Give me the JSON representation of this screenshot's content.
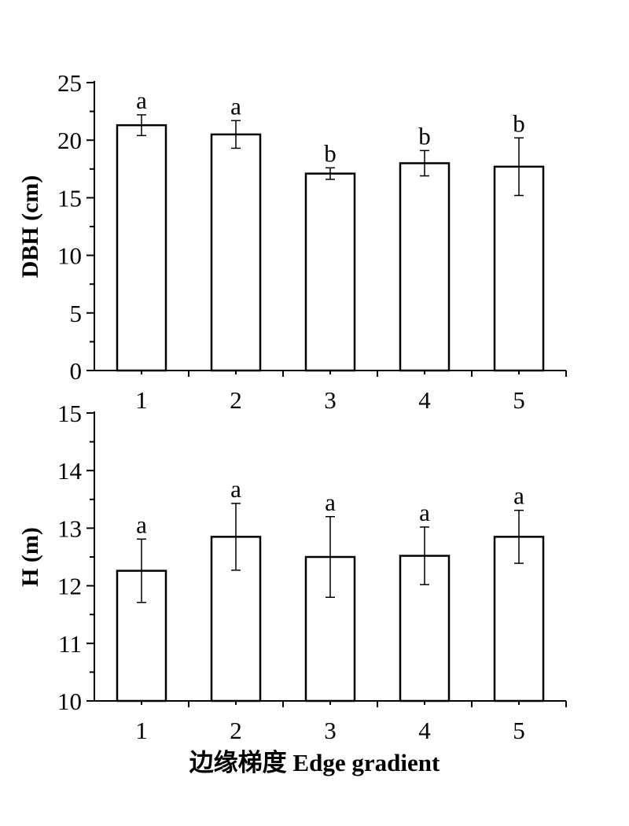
{
  "chart_data": [
    {
      "type": "bar",
      "categories": [
        "1",
        "2",
        "3",
        "4",
        "5"
      ],
      "values": [
        21.3,
        20.5,
        17.1,
        18.0,
        17.7
      ],
      "errors": [
        0.9,
        1.2,
        0.5,
        1.1,
        2.5
      ],
      "annotations": [
        "a",
        "a",
        "b",
        "b",
        "b"
      ],
      "ylabel": "DBH (cm)",
      "ylim": [
        0,
        25
      ],
      "yticks": [
        0,
        5,
        10,
        15,
        20,
        25
      ],
      "ytick_labels": [
        "0",
        "5",
        "10",
        "15",
        "20",
        "25"
      ],
      "grid": false
    },
    {
      "type": "bar",
      "categories": [
        "1",
        "2",
        "3",
        "4",
        "5"
      ],
      "values": [
        12.26,
        12.85,
        12.5,
        12.52,
        12.85
      ],
      "errors": [
        0.55,
        0.58,
        0.7,
        0.5,
        0.46
      ],
      "annotations": [
        "a",
        "a",
        "a",
        "a",
        "a"
      ],
      "ylabel": "H (m)",
      "ylim": [
        10,
        15
      ],
      "yticks": [
        10,
        11,
        12,
        13,
        14,
        15
      ],
      "ytick_labels": [
        "10",
        "11",
        "12",
        "13",
        "14",
        "15"
      ],
      "grid": false
    }
  ],
  "xlabel": "边缘梯度 Edge gradient"
}
